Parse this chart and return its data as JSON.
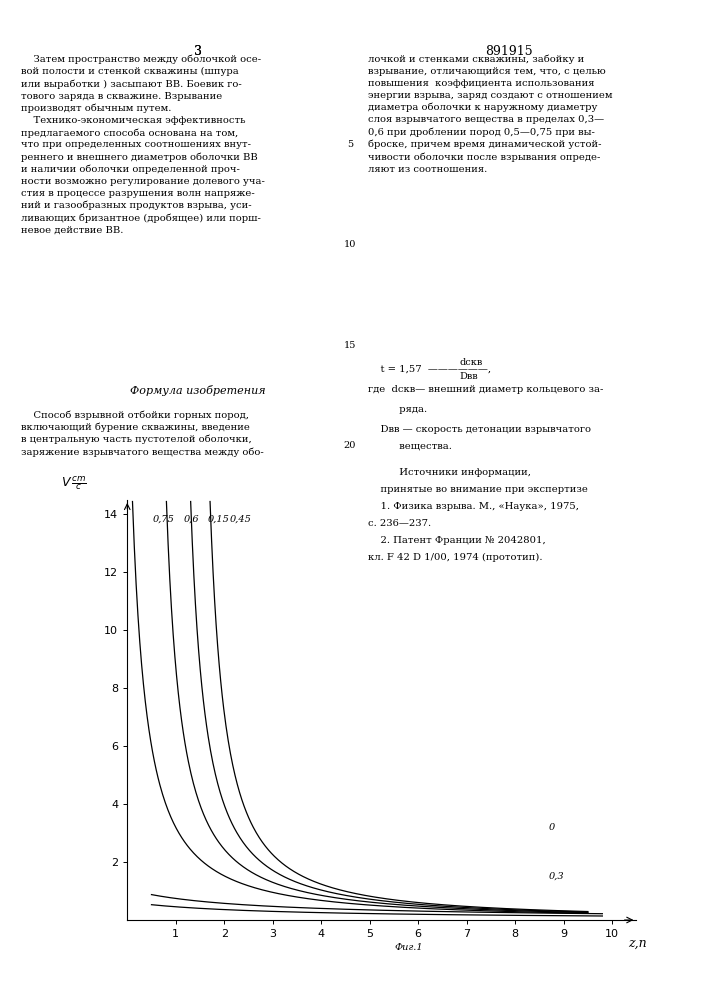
{
  "title": "",
  "ylabel": "V",
  "ylabel_super": "cm",
  "ylabel_sub": "c",
  "xlabel": "z,n",
  "figsize": [
    7.07,
    10.0
  ],
  "dpi": 100,
  "ylim": [
    0,
    14.5
  ],
  "xlim": [
    0,
    10.5
  ],
  "yticks": [
    2,
    4,
    6,
    8,
    10,
    12,
    14
  ],
  "xticks": [
    1,
    2,
    3,
    4,
    5,
    6,
    7,
    8,
    9,
    10
  ],
  "curves": [
    {
      "label": "0,75",
      "x0": 0.5,
      "k": 2.5,
      "alpha": 1.8
    },
    {
      "label": "0,6",
      "x0": 1.2,
      "k": 2.5,
      "alpha": 1.8
    },
    {
      "label": "0,45",
      "x0": 1.8,
      "k": 2.5,
      "alpha": 1.8
    },
    {
      "label": "0,15",
      "x0": 2.1,
      "k": 2.5,
      "alpha": 1.8
    },
    {
      "label": "0",
      "x0": 0.0,
      "k": 1.2,
      "alpha": 1.4
    },
    {
      "label": "0,3",
      "x0": 0.0,
      "k": 0.9,
      "alpha": 1.5
    }
  ],
  "fig1_label": "Фиг.1",
  "fig1_x": 5.8,
  "background_color": "#ffffff",
  "line_color": "#000000",
  "font_color": "#000000"
}
